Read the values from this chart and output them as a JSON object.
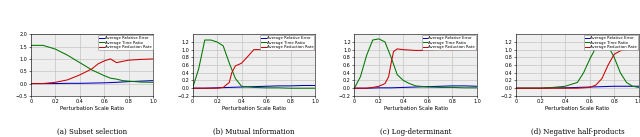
{
  "panels": [
    {
      "title": "(a) Subset selection",
      "xlabel": "Perturbation Scale Ratio",
      "xlim": [
        0,
        1
      ],
      "ylim": [
        -0.5,
        2.0
      ],
      "yticks": [
        -0.5,
        0.0,
        0.5,
        1.0,
        1.5,
        2.0
      ],
      "xticks": [
        0,
        0.2,
        0.4,
        0.6,
        0.8,
        1.0
      ],
      "blue": {
        "x": [
          0,
          0.05,
          0.1,
          0.2,
          0.3,
          0.4,
          0.5,
          0.6,
          0.7,
          0.8,
          0.9,
          1.0
        ],
        "y": [
          0.0,
          0.0,
          0.0,
          0.0,
          0.01,
          0.01,
          0.02,
          0.03,
          0.05,
          0.08,
          0.1,
          0.12
        ]
      },
      "green": {
        "x": [
          0,
          0.1,
          0.2,
          0.3,
          0.4,
          0.5,
          0.6,
          0.65,
          0.7,
          0.75,
          0.8,
          0.9,
          1.0
        ],
        "y": [
          1.55,
          1.55,
          1.4,
          1.15,
          0.85,
          0.55,
          0.32,
          0.22,
          0.18,
          0.12,
          0.1,
          0.06,
          0.05
        ]
      },
      "red": {
        "x": [
          0,
          0.1,
          0.2,
          0.3,
          0.4,
          0.5,
          0.55,
          0.6,
          0.65,
          0.7,
          0.75,
          0.8,
          0.9,
          1.0
        ],
        "y": [
          0.0,
          0.0,
          0.05,
          0.15,
          0.35,
          0.6,
          0.8,
          0.92,
          1.0,
          0.85,
          0.9,
          0.95,
          0.98,
          1.0
        ]
      }
    },
    {
      "title": "(b) Mutual information",
      "xlabel": "Perturbation Scale Ratio",
      "xlim": [
        0,
        1
      ],
      "ylim": [
        -0.2,
        1.4
      ],
      "yticks": [
        -0.2,
        0.0,
        0.2,
        0.4,
        0.6,
        0.8,
        1.0,
        1.2
      ],
      "xticks": [
        0,
        0.2,
        0.4,
        0.6,
        0.8,
        1.0
      ],
      "blue": {
        "x": [
          0,
          0.1,
          0.2,
          0.3,
          0.4,
          0.5,
          0.6,
          0.7,
          0.8,
          0.9,
          1.0
        ],
        "y": [
          0.0,
          0.0,
          0.01,
          0.02,
          0.03,
          0.04,
          0.05,
          0.06,
          0.06,
          0.07,
          0.07
        ]
      },
      "green": {
        "x": [
          0,
          0.05,
          0.1,
          0.15,
          0.2,
          0.25,
          0.3,
          0.35,
          0.4,
          0.5,
          0.6,
          0.7,
          0.8,
          0.9,
          1.0
        ],
        "y": [
          0.0,
          0.5,
          1.25,
          1.25,
          1.2,
          1.1,
          0.65,
          0.25,
          0.05,
          0.02,
          0.01,
          0.01,
          0.0,
          0.0,
          0.0
        ]
      },
      "red": {
        "x": [
          0,
          0.1,
          0.2,
          0.25,
          0.3,
          0.32,
          0.35,
          0.38,
          0.4,
          0.45,
          0.5,
          0.6,
          0.7,
          0.8,
          0.9,
          1.0
        ],
        "y": [
          0.0,
          0.0,
          0.0,
          0.02,
          0.15,
          0.4,
          0.58,
          0.62,
          0.65,
          0.82,
          1.0,
          1.0,
          1.0,
          1.0,
          1.0,
          1.0
        ]
      }
    },
    {
      "title": "(c) Log-determinant",
      "xlabel": "Perturbation Scale Ratio",
      "xlim": [
        0,
        1
      ],
      "ylim": [
        -0.2,
        1.4
      ],
      "yticks": [
        -0.2,
        0.0,
        0.2,
        0.4,
        0.6,
        0.8,
        1.0,
        1.2
      ],
      "xticks": [
        0,
        0.2,
        0.4,
        0.6,
        0.8,
        1.0
      ],
      "blue": {
        "x": [
          0,
          0.1,
          0.2,
          0.3,
          0.4,
          0.5,
          0.6,
          0.7,
          0.8,
          0.9,
          1.0
        ],
        "y": [
          0.0,
          0.0,
          0.01,
          0.01,
          0.02,
          0.03,
          0.04,
          0.05,
          0.06,
          0.06,
          0.05
        ]
      },
      "green": {
        "x": [
          0,
          0.05,
          0.1,
          0.15,
          0.2,
          0.25,
          0.3,
          0.35,
          0.4,
          0.45,
          0.5,
          0.6,
          0.7,
          0.8,
          0.9,
          1.0
        ],
        "y": [
          0.0,
          0.3,
          0.85,
          1.25,
          1.28,
          1.2,
          0.8,
          0.35,
          0.2,
          0.12,
          0.06,
          0.03,
          0.02,
          0.02,
          0.01,
          0.01
        ]
      },
      "red": {
        "x": [
          0,
          0.1,
          0.15,
          0.2,
          0.25,
          0.28,
          0.3,
          0.32,
          0.35,
          0.4,
          0.5,
          0.6,
          0.7,
          0.8,
          0.9,
          1.0
        ],
        "y": [
          0.0,
          0.0,
          0.02,
          0.05,
          0.12,
          0.3,
          0.65,
          0.95,
          1.02,
          1.0,
          0.98,
          0.98,
          1.0,
          0.99,
          1.0,
          1.0
        ]
      }
    },
    {
      "title": "(d) Negative half-products",
      "xlabel": "Perturbation Scale Ratio",
      "xlim": [
        0,
        1
      ],
      "ylim": [
        -0.2,
        1.4
      ],
      "yticks": [
        -0.2,
        0.0,
        0.2,
        0.4,
        0.6,
        0.8,
        1.0,
        1.2
      ],
      "xticks": [
        0,
        0.2,
        0.4,
        0.6,
        0.8,
        1.0
      ],
      "blue": {
        "x": [
          0,
          0.1,
          0.2,
          0.3,
          0.4,
          0.5,
          0.6,
          0.7,
          0.8,
          0.9,
          1.0
        ],
        "y": [
          0.0,
          0.0,
          0.0,
          0.01,
          0.01,
          0.02,
          0.03,
          0.04,
          0.05,
          0.05,
          0.05
        ]
      },
      "green": {
        "x": [
          0,
          0.1,
          0.2,
          0.3,
          0.4,
          0.5,
          0.55,
          0.6,
          0.65,
          0.7,
          0.75,
          0.8,
          0.85,
          0.9,
          0.95,
          1.0
        ],
        "y": [
          0.0,
          0.0,
          0.0,
          0.02,
          0.05,
          0.15,
          0.4,
          0.75,
          1.05,
          1.2,
          1.1,
          0.8,
          0.4,
          0.15,
          0.05,
          0.02
        ]
      },
      "red": {
        "x": [
          0,
          0.1,
          0.2,
          0.3,
          0.4,
          0.5,
          0.6,
          0.65,
          0.7,
          0.75,
          0.8,
          0.85,
          0.9,
          1.0
        ],
        "y": [
          0.0,
          0.0,
          0.0,
          0.0,
          0.0,
          0.0,
          0.02,
          0.08,
          0.25,
          0.6,
          0.88,
          0.97,
          1.0,
          1.0
        ]
      }
    }
  ],
  "legend_labels": [
    "Average Relative Error",
    "Average Time Ratio",
    "Average Reduction Rate"
  ],
  "line_colors": [
    "#0000bb",
    "#007700",
    "#cc0000"
  ],
  "grid_color": "#bbbbbb",
  "background_color": "#eeeeee"
}
